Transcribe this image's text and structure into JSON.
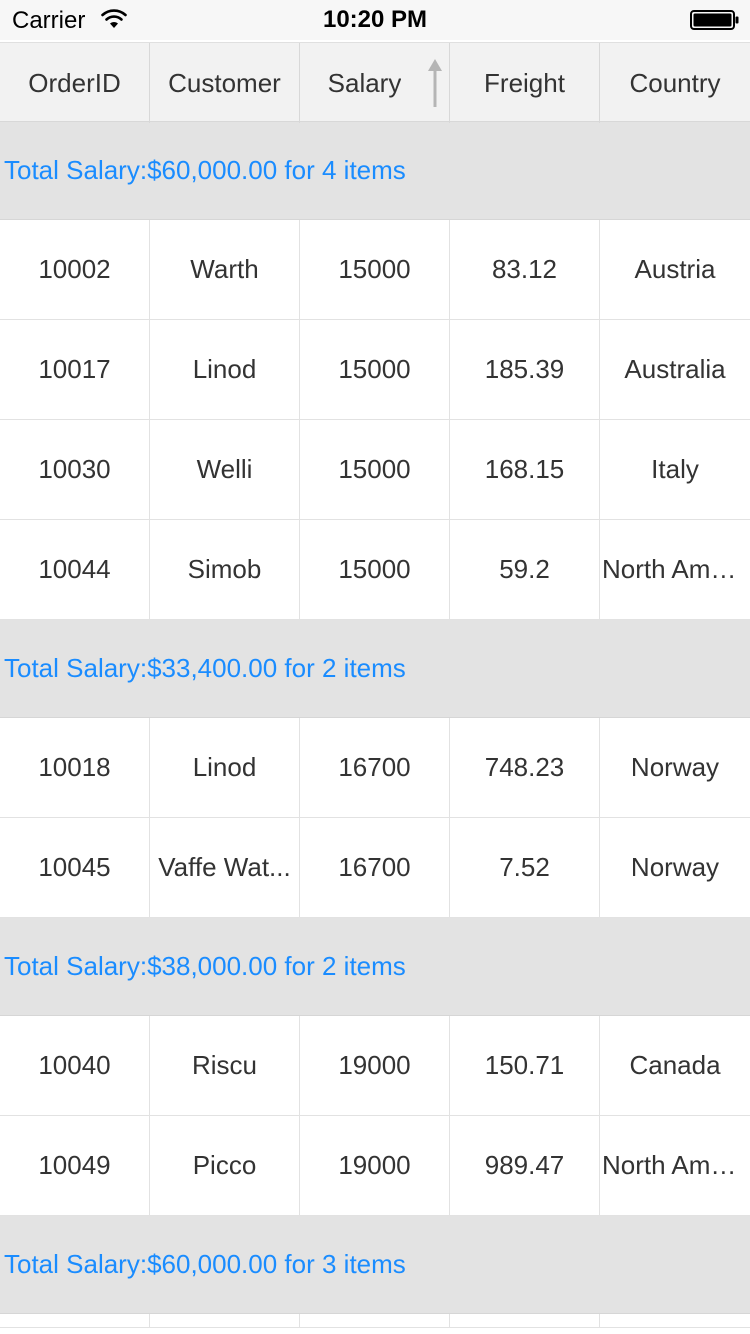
{
  "status_bar": {
    "carrier": "Carrier",
    "time": "10:20 PM"
  },
  "columns": [
    "OrderID",
    "Customer",
    "Salary",
    "Freight",
    "Country"
  ],
  "sort": {
    "column": "Salary",
    "direction": "ascending"
  },
  "groups": [
    {
      "caption": "Total Salary:$60,000.00 for 4 items",
      "rows": [
        [
          "10002",
          "Warth",
          "15000",
          "83.12",
          "Austria"
        ],
        [
          "10017",
          "Linod",
          "15000",
          "185.39",
          "Australia"
        ],
        [
          "10030",
          "Welli",
          "15000",
          "168.15",
          "Italy"
        ],
        [
          "10044",
          "Simob",
          "15000",
          "59.2",
          "North America"
        ]
      ]
    },
    {
      "caption": "Total Salary:$33,400.00 for 2 items",
      "rows": [
        [
          "10018",
          "Linod",
          "16700",
          "748.23",
          "Norway"
        ],
        [
          "10045",
          "Vaffe Wat...",
          "16700",
          "7.52",
          "Norway"
        ]
      ]
    },
    {
      "caption": "Total Salary:$38,000.00 for 2 items",
      "rows": [
        [
          "10040",
          "Riscu",
          "19000",
          "150.71",
          "Canada"
        ],
        [
          "10049",
          "Picco",
          "19000",
          "989.47",
          "North America"
        ]
      ]
    },
    {
      "caption": "Total Salary:$60,000.00 for 3 items",
      "rows": [
        [
          "",
          "",
          "",
          "",
          ""
        ]
      ]
    }
  ],
  "colors": {
    "caption_text": "#1a8cff",
    "caption_bg": "#e3e3e3",
    "header_bg": "#f2f2f2",
    "grid_line": "#e2e2e2"
  }
}
